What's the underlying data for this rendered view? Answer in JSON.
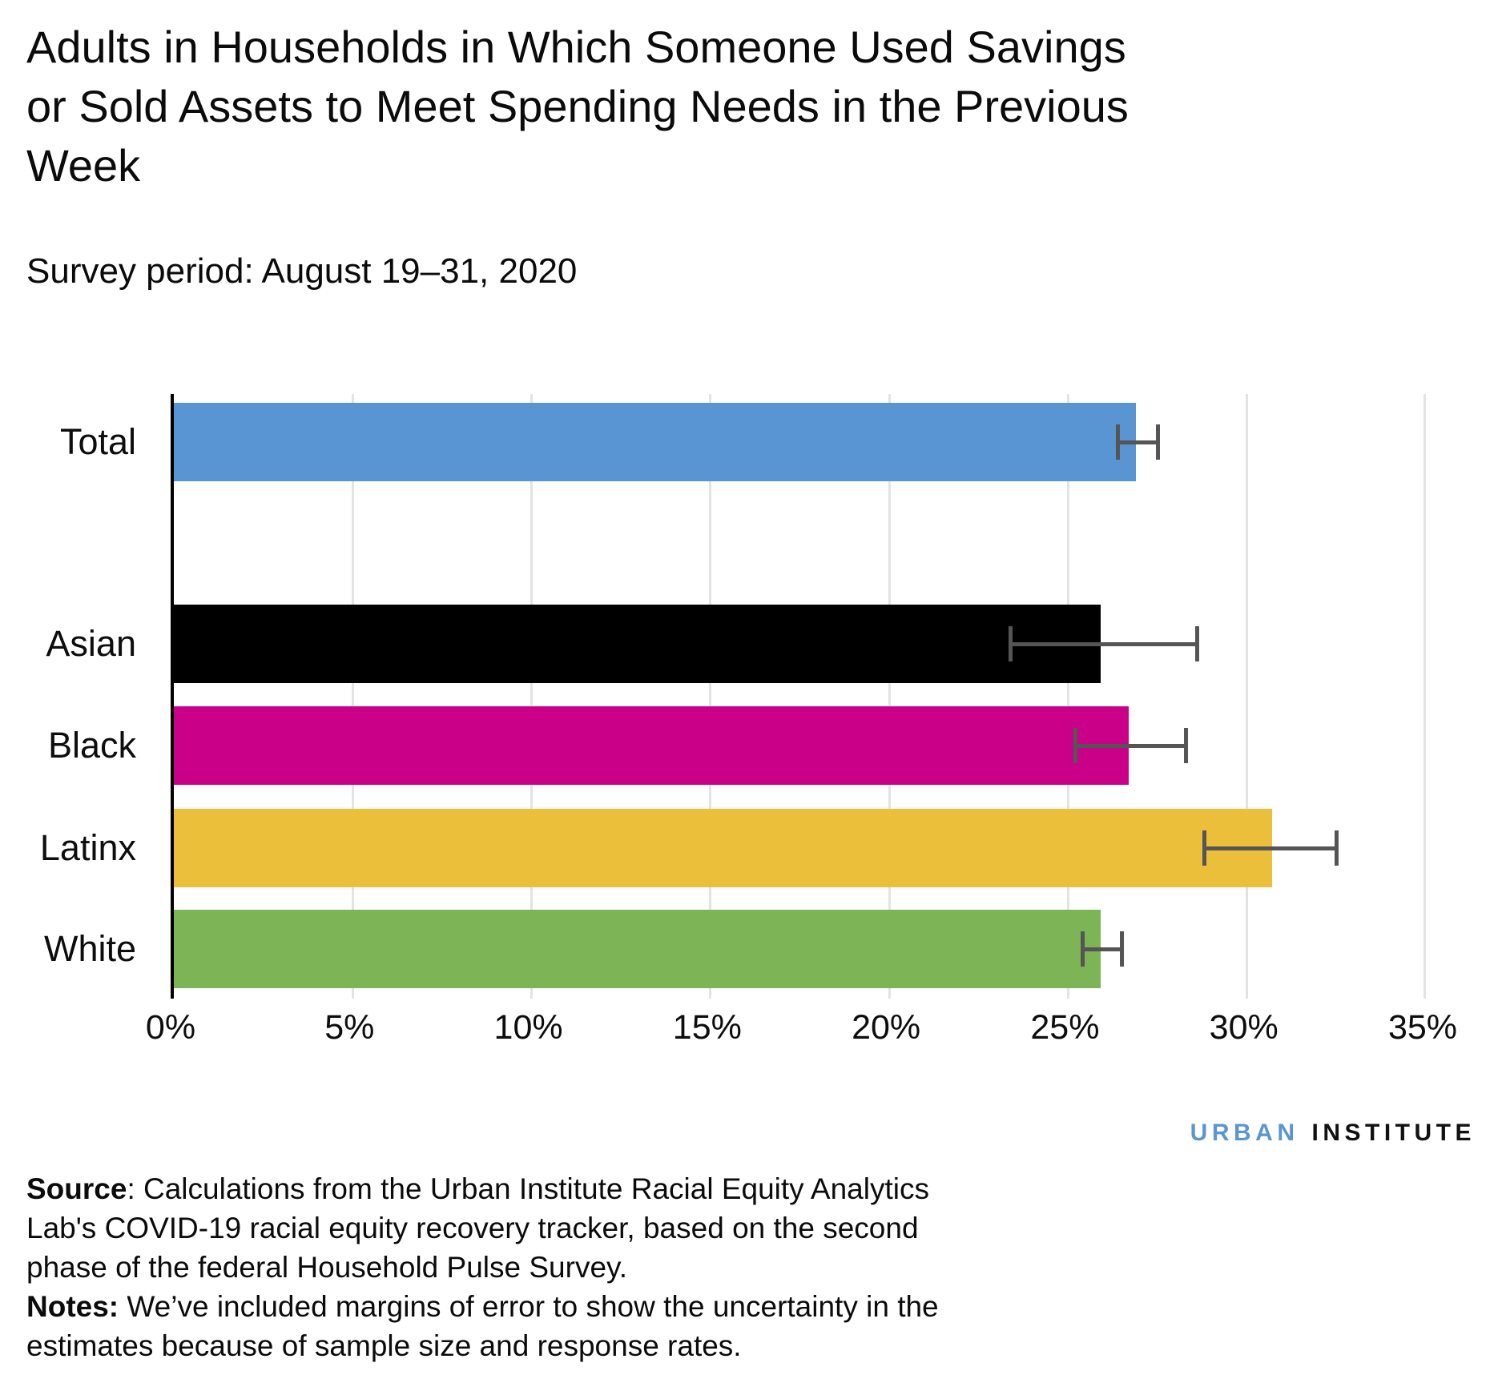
{
  "header": {
    "title_lines": [
      "Adults in Households in Which Someone Used Savings",
      "or Sold Assets to Meet Spending Needs in the Previous",
      "Week"
    ],
    "subtitle": "Survey period: August 19–31, 2020"
  },
  "chart_data": {
    "type": "bar",
    "orientation": "horizontal",
    "title": "Adults in Households in Which Someone Used Savings or Sold Assets to Meet Spending Needs in the Previous Week",
    "subtitle": "Survey period: August 19–31, 2020",
    "categories": [
      "Total",
      "Asian",
      "Black",
      "Latinx",
      "White"
    ],
    "values": [
      26.9,
      25.9,
      26.7,
      30.7,
      25.9
    ],
    "error_low": [
      26.4,
      23.4,
      25.2,
      28.8,
      25.4
    ],
    "error_high": [
      27.5,
      28.6,
      28.3,
      32.5,
      26.5
    ],
    "bar_colors": [
      "#5995d3",
      "#000000",
      "#ca0088",
      "#ecbf3a",
      "#7cb456"
    ],
    "errorbar_color": "#555555",
    "gridline_color": "#e3e3e3",
    "axis_color": "#000000",
    "xlim": [
      0,
      35
    ],
    "tick_values": [
      0,
      5,
      10,
      15,
      20,
      25,
      30,
      35
    ],
    "tick_labels": [
      "0%",
      "5%",
      "10%",
      "15%",
      "20%",
      "25%",
      "30%",
      "35%"
    ],
    "grid": true,
    "legend": false,
    "units": "percent"
  },
  "footer": {
    "logo": {
      "urban": "URBAN",
      "institute": "INSTITUTE"
    },
    "source": {
      "bold": "Source",
      "lines": [
        ": Calculations from the Urban Institute Racial Equity Analytics",
        "Lab's COVID-19 racial equity recovery tracker, based on the second",
        "phase of the federal Household Pulse Survey."
      ]
    },
    "notes": {
      "bold": "Notes:",
      "lines": [
        " We’ve included margins of error to show the uncertainty in the",
        "estimates because of sample size and response rates."
      ]
    }
  }
}
